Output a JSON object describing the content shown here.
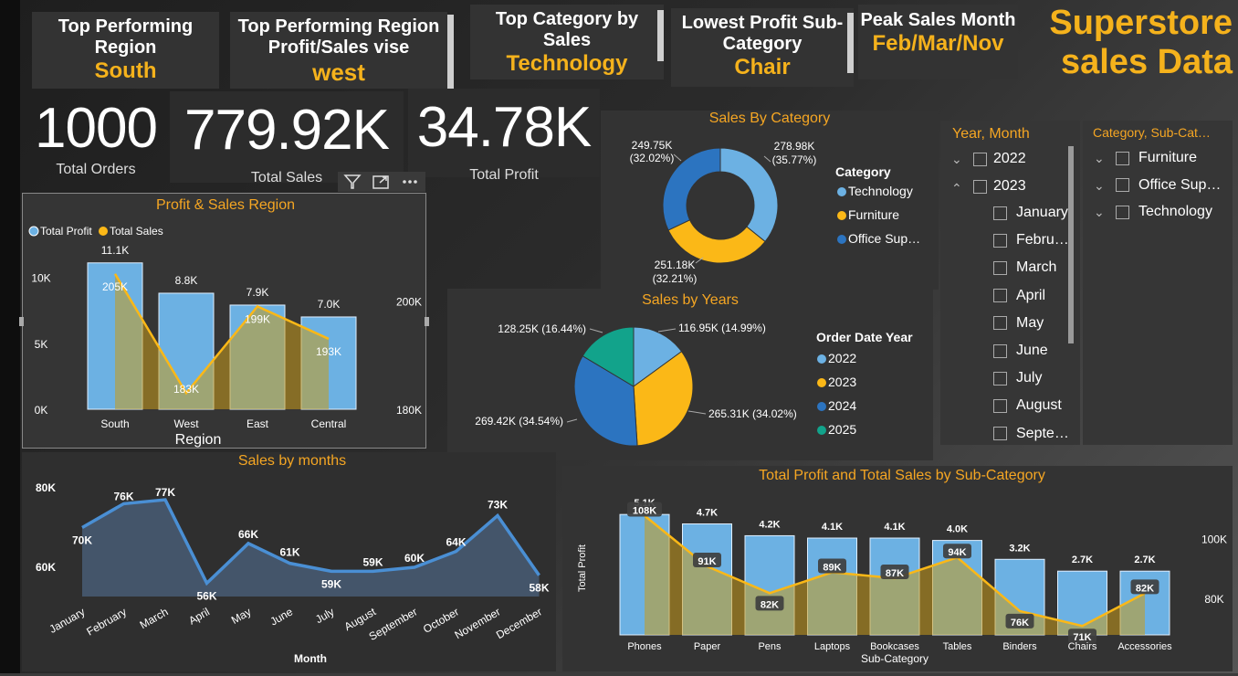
{
  "header": {
    "title_line1": "Superstore",
    "title_line2": "sales Data"
  },
  "kpis": [
    {
      "title_line1": "Top Performing",
      "title_line2": "Region",
      "value": "South"
    },
    {
      "title_line1": "Top Performing  Region",
      "title_line2": "Profit/Sales vise",
      "value": "west"
    },
    {
      "title_line1": "Top Category by",
      "title_line2": "Sales",
      "value": "Technology"
    },
    {
      "title_line1": "Lowest Profit Sub-",
      "title_line2": "Category",
      "value": "Chair"
    },
    {
      "title_line1": "Peak Sales Month",
      "title_line2": "",
      "value": "Feb/Mar/Nov"
    }
  ],
  "totals": [
    {
      "value": "1000",
      "label": "Total Orders"
    },
    {
      "value": "779.92K",
      "label": "Total Sales"
    },
    {
      "value": "34.78K",
      "label": "Total Profit"
    }
  ],
  "colors": {
    "accent": "#f5a623",
    "light_blue": "#6cb1e3",
    "yellow": "#fbb817",
    "dark_blue": "#2c74c0",
    "teal": "#12a38b"
  },
  "slicers": {
    "date": {
      "header": "Year, Month",
      "years": [
        {
          "label": "2022",
          "chevron": "chevron-down-icon"
        },
        {
          "label": "2023",
          "chevron": "chevron-up-icon"
        }
      ],
      "months": [
        "January",
        "Febru…",
        "March",
        "April",
        "May",
        "June",
        "July",
        "August",
        "Septe…"
      ]
    },
    "category": {
      "header": "Category, Sub-Cat…",
      "items": [
        "Furniture",
        "Office Sup…",
        "Technology"
      ]
    }
  },
  "chart_data": [
    {
      "id": "region",
      "type": "bar",
      "title": "Profit & Sales Region",
      "xlabel": "Region",
      "ylabel": "",
      "legend": [
        "Total Profit",
        "Total Sales"
      ],
      "legend_position": "top-left",
      "categories": [
        "South",
        "West",
        "East",
        "Central"
      ],
      "series": [
        {
          "name": "Total Profit",
          "type": "bar",
          "values": [
            11.1,
            8.8,
            7.9,
            7.0
          ],
          "labels": [
            "11.1K",
            "8.8K",
            "7.9K",
            "7.0K"
          ]
        },
        {
          "name": "Total Sales",
          "type": "line",
          "values": [
            205,
            183,
            199,
            193
          ],
          "labels": [
            "205K",
            "183K",
            "199K",
            "193K"
          ]
        }
      ],
      "y_left_ticks": [
        "0K",
        "5K",
        "10K"
      ],
      "y_left_range": [
        0,
        11.5
      ],
      "y_right_ticks": [
        "180K",
        "200K"
      ],
      "y_right_range": [
        180,
        208
      ]
    },
    {
      "id": "category",
      "type": "pie",
      "title": "Sales By Category",
      "legend_title": "Category",
      "legend_position": "right",
      "slices": [
        {
          "name": "Technology",
          "value": 278.98,
          "label": "278.98K",
          "pct": "(35.77%)",
          "color": "#6cb1e3"
        },
        {
          "name": "Furniture",
          "value": 251.18,
          "label": "251.18K",
          "pct": "(32.21%)",
          "color": "#fbb817"
        },
        {
          "name": "Office Sup…",
          "value": 249.75,
          "label": "249.75K",
          "pct": "(32.02%)",
          "color": "#2c74c0"
        }
      ]
    },
    {
      "id": "years",
      "type": "pie",
      "title": "Sales by Years",
      "legend_title": "Order Date Year",
      "legend_position": "right",
      "slices": [
        {
          "name": "2022",
          "value": 116.95,
          "label": "116.95K (14.99%)",
          "color": "#6cb1e3"
        },
        {
          "name": "2023",
          "value": 265.31,
          "label": "265.31K (34.02%)",
          "color": "#fbb817"
        },
        {
          "name": "2024",
          "value": 269.42,
          "label": "269.42K (34.54%)",
          "color": "#2c74c0"
        },
        {
          "name": "2025",
          "value": 128.25,
          "label": "128.25K (16.44%)",
          "color": "#12a38b"
        }
      ]
    },
    {
      "id": "months",
      "type": "area",
      "title": "Sales by months",
      "xlabel": "Month",
      "ylabel": "",
      "categories": [
        "January",
        "February",
        "March",
        "April",
        "May",
        "June",
        "July",
        "August",
        "September",
        "October",
        "November",
        "December"
      ],
      "values": [
        70,
        76,
        77,
        56,
        66,
        61,
        59,
        59,
        60,
        64,
        73,
        58
      ],
      "labels": [
        "70K",
        "76K",
        "77K",
        "56K",
        "66K",
        "61K",
        "59K",
        "59K",
        "60K",
        "64K",
        "73K",
        "58K"
      ],
      "y_ticks": [
        "60K",
        "80K"
      ],
      "ylim": [
        50,
        82
      ]
    },
    {
      "id": "subcategory",
      "type": "bar",
      "title": "Total Profit and Total Sales by Sub-Category",
      "xlabel": "Sub-Category",
      "ylabel": "Total Profit",
      "categories": [
        "Phones",
        "Paper",
        "Pens",
        "Laptops",
        "Bookcases",
        "Tables",
        "Binders",
        "Chairs",
        "Accessories"
      ],
      "series": [
        {
          "name": "Total Profit",
          "type": "bar",
          "values": [
            5.1,
            4.7,
            4.2,
            4.1,
            4.1,
            4.0,
            3.2,
            2.7,
            2.7
          ],
          "labels": [
            "5.1K",
            "4.7K",
            "4.2K",
            "4.1K",
            "4.1K",
            "4.0K",
            "3.2K",
            "2.7K",
            "2.7K"
          ]
        },
        {
          "name": "Total Sales",
          "type": "line",
          "values": [
            108,
            91,
            82,
            89,
            87,
            94,
            76,
            71,
            82
          ],
          "labels": [
            "108K",
            "91K",
            "82K",
            "89K",
            "87K",
            "94K",
            "76K",
            "71K",
            "82K"
          ]
        }
      ],
      "y_left_range": [
        0,
        5.3
      ],
      "y_right_ticks": [
        "80K",
        "100K"
      ],
      "y_right_range": [
        68,
        110
      ]
    }
  ]
}
